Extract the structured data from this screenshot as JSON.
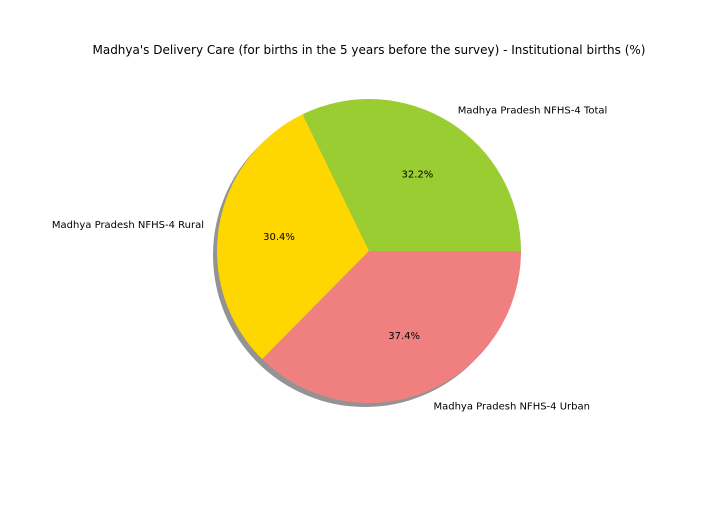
{
  "chart_data": {
    "type": "pie",
    "title": "Madhya's Delivery Care (for births in the 5 years before the survey) - Institutional births (%)",
    "slices": [
      {
        "label": "Madhya Pradesh NFHS-4 Total",
        "value": 32.2,
        "pct_label": "32.2%",
        "color": "#9acd32"
      },
      {
        "label": "Madhya Pradesh NFHS-4 Rural",
        "value": 30.4,
        "pct_label": "30.4%",
        "color": "#ffd700"
      },
      {
        "label": "Madhya Pradesh NFHS-4 Urban",
        "value": 37.4,
        "pct_label": "37.4%",
        "color": "#f08080"
      }
    ],
    "start_angle_deg": 0,
    "direction": "counterclockwise",
    "shadow": true
  }
}
